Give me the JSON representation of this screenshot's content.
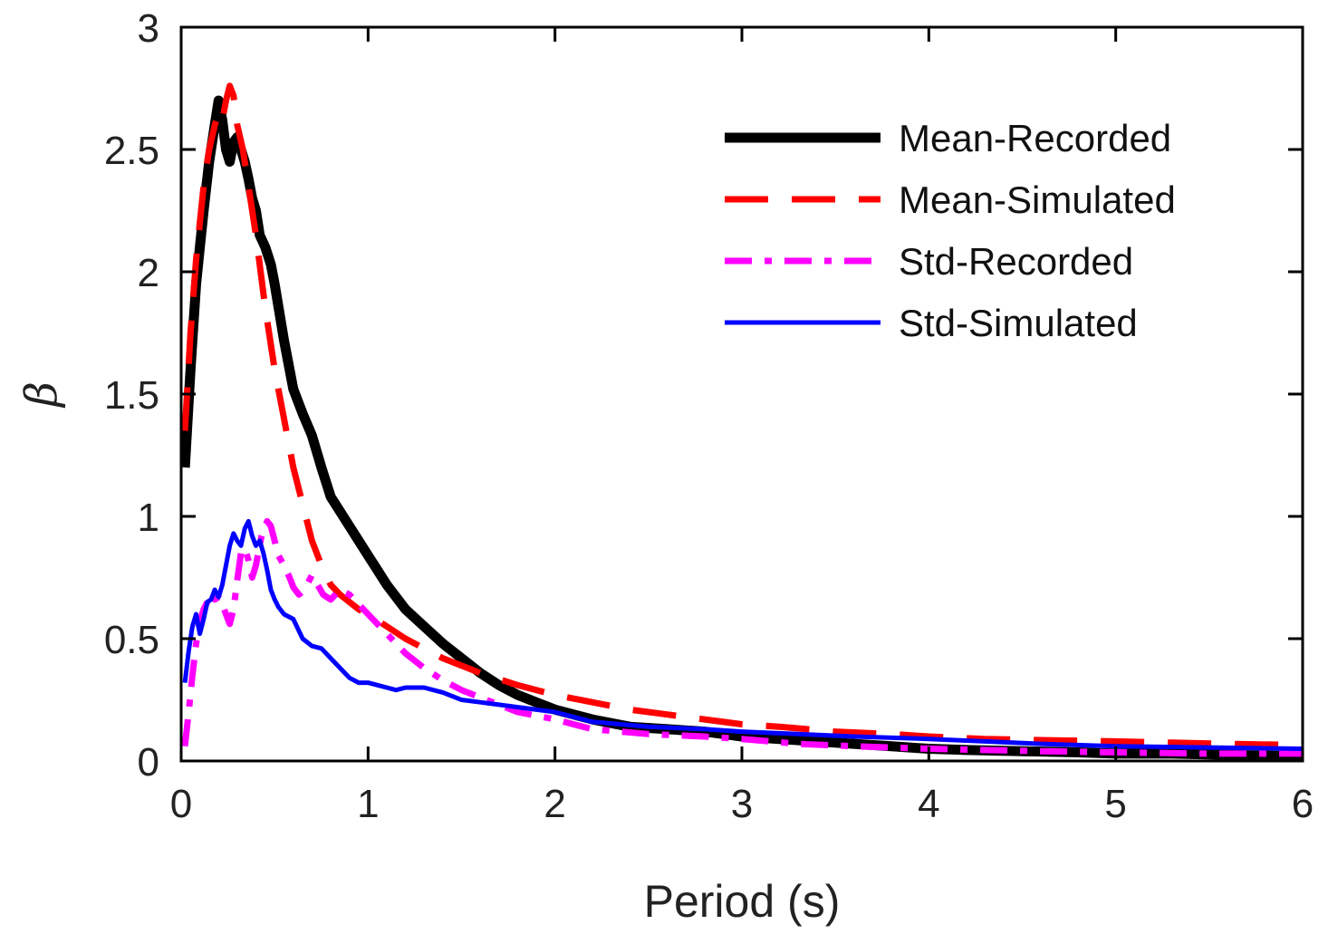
{
  "chart_data": {
    "type": "line",
    "title": "",
    "xlabel": "Period (s)",
    "ylabel": "β",
    "xlim": [
      0,
      6
    ],
    "ylim": [
      0,
      3
    ],
    "xticks": [
      0,
      1,
      2,
      3,
      4,
      5,
      6
    ],
    "yticks": [
      0,
      0.5,
      1,
      1.5,
      2,
      2.5,
      3
    ],
    "xtick_labels": [
      "0",
      "1",
      "2",
      "3",
      "4",
      "5",
      "6"
    ],
    "ytick_labels": [
      "0",
      "0.5",
      "1",
      "1.5",
      "2",
      "2.5",
      "3"
    ],
    "grid": false,
    "legend": "top-right",
    "series": [
      {
        "name": "Mean-Recorded",
        "color": "#000000",
        "style": "solid",
        "x": [
          0.02,
          0.05,
          0.08,
          0.1,
          0.12,
          0.15,
          0.18,
          0.2,
          0.22,
          0.24,
          0.26,
          0.28,
          0.3,
          0.32,
          0.34,
          0.36,
          0.38,
          0.4,
          0.42,
          0.45,
          0.48,
          0.5,
          0.55,
          0.6,
          0.65,
          0.7,
          0.75,
          0.8,
          0.85,
          0.9,
          0.95,
          1.0,
          1.05,
          1.1,
          1.15,
          1.2,
          1.3,
          1.4,
          1.5,
          1.6,
          1.7,
          1.8,
          1.9,
          2.0,
          2.2,
          2.4,
          2.6,
          2.8,
          3.0,
          3.2,
          3.4,
          3.6,
          3.8,
          4.0,
          4.2,
          4.5,
          4.8,
          5.0,
          5.3,
          5.6,
          6.0
        ],
        "y": [
          1.2,
          1.6,
          1.95,
          2.1,
          2.25,
          2.45,
          2.6,
          2.7,
          2.62,
          2.5,
          2.45,
          2.53,
          2.55,
          2.5,
          2.45,
          2.38,
          2.3,
          2.25,
          2.15,
          2.1,
          2.03,
          1.95,
          1.72,
          1.52,
          1.42,
          1.33,
          1.2,
          1.08,
          1.02,
          0.96,
          0.9,
          0.84,
          0.78,
          0.72,
          0.67,
          0.62,
          0.55,
          0.48,
          0.42,
          0.36,
          0.31,
          0.27,
          0.24,
          0.21,
          0.17,
          0.14,
          0.13,
          0.12,
          0.1,
          0.09,
          0.08,
          0.07,
          0.06,
          0.05,
          0.045,
          0.04,
          0.035,
          0.03,
          0.03,
          0.025,
          0.02
        ]
      },
      {
        "name": "Mean-Simulated",
        "color": "#ff0000",
        "style": "dashed",
        "x": [
          0.02,
          0.05,
          0.08,
          0.1,
          0.12,
          0.15,
          0.18,
          0.2,
          0.22,
          0.24,
          0.26,
          0.28,
          0.3,
          0.33,
          0.36,
          0.4,
          0.45,
          0.5,
          0.55,
          0.6,
          0.65,
          0.7,
          0.75,
          0.8,
          0.85,
          0.9,
          0.95,
          1.0,
          1.1,
          1.2,
          1.3,
          1.4,
          1.5,
          1.6,
          1.8,
          2.0,
          2.2,
          2.4,
          2.6,
          2.8,
          3.0,
          3.2,
          3.5,
          3.8,
          4.0,
          4.3,
          4.6,
          5.0,
          5.3,
          5.6,
          6.0
        ],
        "y": [
          1.35,
          1.75,
          2.05,
          2.2,
          2.35,
          2.5,
          2.6,
          2.65,
          2.62,
          2.7,
          2.76,
          2.72,
          2.6,
          2.5,
          2.35,
          2.15,
          1.85,
          1.6,
          1.4,
          1.2,
          1.05,
          0.9,
          0.8,
          0.72,
          0.68,
          0.65,
          0.62,
          0.6,
          0.55,
          0.5,
          0.46,
          0.42,
          0.39,
          0.36,
          0.31,
          0.27,
          0.24,
          0.21,
          0.19,
          0.17,
          0.15,
          0.14,
          0.12,
          0.11,
          0.1,
          0.09,
          0.085,
          0.08,
          0.075,
          0.07,
          0.065
        ]
      },
      {
        "name": "Std-Recorded",
        "color": "#ff00ff",
        "style": "dashdot",
        "x": [
          0.02,
          0.04,
          0.06,
          0.08,
          0.1,
          0.12,
          0.14,
          0.16,
          0.18,
          0.2,
          0.22,
          0.24,
          0.26,
          0.28,
          0.3,
          0.32,
          0.34,
          0.36,
          0.38,
          0.4,
          0.43,
          0.46,
          0.48,
          0.5,
          0.52,
          0.55,
          0.58,
          0.6,
          0.63,
          0.66,
          0.7,
          0.73,
          0.76,
          0.8,
          0.85,
          0.9,
          0.95,
          1.0,
          1.05,
          1.1,
          1.2,
          1.3,
          1.4,
          1.5,
          1.6,
          1.7,
          1.8,
          2.0,
          2.2,
          2.5,
          2.8,
          3.0,
          3.3,
          3.6,
          4.0,
          4.3,
          4.6,
          5.0,
          5.5,
          6.0
        ],
        "y": [
          0.06,
          0.2,
          0.35,
          0.48,
          0.57,
          0.62,
          0.65,
          0.68,
          0.66,
          0.67,
          0.64,
          0.6,
          0.56,
          0.62,
          0.74,
          0.85,
          0.87,
          0.82,
          0.75,
          0.8,
          0.92,
          0.98,
          0.96,
          0.9,
          0.84,
          0.8,
          0.75,
          0.71,
          0.68,
          0.7,
          0.76,
          0.72,
          0.68,
          0.66,
          0.7,
          0.68,
          0.64,
          0.6,
          0.56,
          0.52,
          0.44,
          0.38,
          0.33,
          0.29,
          0.26,
          0.23,
          0.2,
          0.17,
          0.13,
          0.11,
          0.1,
          0.09,
          0.07,
          0.06,
          0.05,
          0.045,
          0.04,
          0.035,
          0.03,
          0.03
        ]
      },
      {
        "name": "Std-Simulated",
        "color": "#0000ff",
        "style": "solid",
        "x": [
          0.02,
          0.04,
          0.06,
          0.08,
          0.1,
          0.12,
          0.14,
          0.16,
          0.18,
          0.2,
          0.22,
          0.24,
          0.26,
          0.28,
          0.3,
          0.32,
          0.34,
          0.36,
          0.38,
          0.4,
          0.42,
          0.44,
          0.46,
          0.48,
          0.5,
          0.52,
          0.55,
          0.6,
          0.65,
          0.7,
          0.75,
          0.8,
          0.85,
          0.9,
          0.95,
          1.0,
          1.05,
          1.1,
          1.15,
          1.2,
          1.3,
          1.4,
          1.5,
          1.6,
          1.7,
          1.8,
          2.0,
          2.2,
          2.5,
          2.8,
          3.0,
          3.3,
          3.6,
          4.0,
          4.3,
          4.6,
          5.0,
          5.5,
          6.0
        ],
        "y": [
          0.32,
          0.45,
          0.55,
          0.6,
          0.52,
          0.58,
          0.65,
          0.66,
          0.7,
          0.67,
          0.72,
          0.8,
          0.88,
          0.93,
          0.9,
          0.88,
          0.95,
          0.98,
          0.92,
          0.88,
          0.9,
          0.85,
          0.78,
          0.7,
          0.66,
          0.63,
          0.6,
          0.58,
          0.5,
          0.47,
          0.46,
          0.42,
          0.38,
          0.34,
          0.32,
          0.32,
          0.31,
          0.3,
          0.29,
          0.3,
          0.3,
          0.28,
          0.25,
          0.24,
          0.23,
          0.22,
          0.2,
          0.16,
          0.14,
          0.13,
          0.12,
          0.11,
          0.1,
          0.09,
          0.08,
          0.07,
          0.06,
          0.055,
          0.05
        ]
      }
    ]
  }
}
